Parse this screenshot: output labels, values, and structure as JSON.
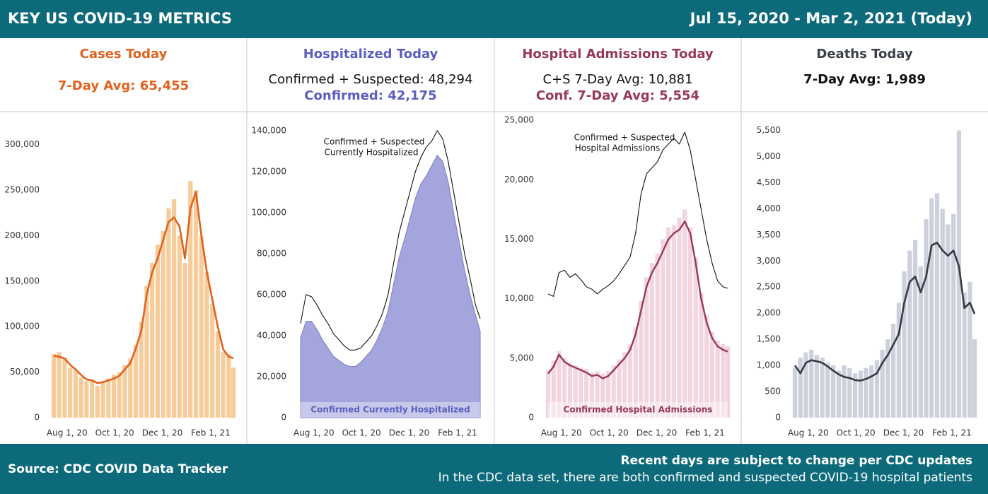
{
  "header": {
    "title": "KEY US COVID-19 METRICS",
    "date_range": "Jul 15, 2020 - Mar 2, 2021 (Today)"
  },
  "panels": [
    {
      "title": "Cases Today",
      "stats": [
        "7-Day Avg: 65,455"
      ]
    },
    {
      "title": "Hospitalized Today",
      "stats": [
        "Confirmed + Suspected: 48,294",
        "Confirmed: 42,175"
      ]
    },
    {
      "title": "Hospital Admissions Today",
      "stats": [
        "C+S 7-Day Avg: 10,881",
        "Conf. 7-Day Avg: 5,554"
      ]
    },
    {
      "title": "Deaths Today",
      "stats": [
        "7-Day Avg: 1,989"
      ]
    }
  ],
  "chart_data": [
    {
      "type": "bar",
      "x": [
        "2020-07-15",
        "2020-07-22",
        "2020-07-29",
        "2020-08-05",
        "2020-08-12",
        "2020-08-19",
        "2020-08-26",
        "2020-09-02",
        "2020-09-09",
        "2020-09-16",
        "2020-09-23",
        "2020-09-30",
        "2020-10-07",
        "2020-10-14",
        "2020-10-21",
        "2020-10-28",
        "2020-11-04",
        "2020-11-11",
        "2020-11-18",
        "2020-11-25",
        "2020-12-02",
        "2020-12-09",
        "2020-12-16",
        "2020-12-23",
        "2020-12-30",
        "2021-01-06",
        "2021-01-13",
        "2021-01-20",
        "2021-01-27",
        "2021-02-03",
        "2021-02-10",
        "2021-02-17",
        "2021-02-24",
        "2021-03-02"
      ],
      "xlim": [
        "2020-07-15",
        "2021-03-02"
      ],
      "xticks": [
        {
          "value": "2020-08-01",
          "label": "Aug 1, 20"
        },
        {
          "value": "2020-10-01",
          "label": "Oct 1, 20"
        },
        {
          "value": "2020-12-01",
          "label": "Dec 1, 20"
        },
        {
          "value": "2021-02-01",
          "label": "Feb 1, 21"
        }
      ],
      "ylim": [
        0,
        330000
      ],
      "yticks": [
        0,
        {
          "value": 50000,
          "label": "50,000"
        },
        {
          "value": 100000,
          "label": "100,000"
        },
        {
          "value": 150000,
          "label": "150,000"
        },
        {
          "value": 200000,
          "label": "200,000"
        },
        {
          "value": 250000,
          "label": "250,000"
        },
        {
          "value": 300000,
          "label": "300,000"
        }
      ],
      "series": [
        {
          "type": "bar",
          "color": "#f7cc9b",
          "values": [
            70000,
            72000,
            66000,
            55000,
            52000,
            44000,
            40000,
            42000,
            35000,
            40000,
            43000,
            47000,
            50000,
            58000,
            65000,
            80000,
            105000,
            145000,
            170000,
            190000,
            205000,
            230000,
            240000,
            200000,
            170000,
            260000,
            250000,
            200000,
            160000,
            125000,
            95000,
            72000,
            70000,
            55000
          ]
        },
        {
          "type": "line",
          "color": "#e0621f",
          "values": [
            68000,
            67000,
            65000,
            58000,
            53000,
            47000,
            42000,
            41000,
            38000,
            39000,
            41000,
            43000,
            46000,
            53000,
            60000,
            76000,
            95000,
            135000,
            160000,
            175000,
            195000,
            215000,
            220000,
            210000,
            175000,
            230000,
            248000,
            200000,
            160000,
            130000,
            100000,
            75000,
            67000,
            65455
          ]
        }
      ],
      "annotations": []
    },
    {
      "type": "line",
      "x": [
        "2020-07-15",
        "2020-07-22",
        "2020-07-29",
        "2020-08-05",
        "2020-08-12",
        "2020-08-19",
        "2020-08-26",
        "2020-09-02",
        "2020-09-09",
        "2020-09-16",
        "2020-09-23",
        "2020-09-30",
        "2020-10-07",
        "2020-10-14",
        "2020-10-21",
        "2020-10-28",
        "2020-11-04",
        "2020-11-11",
        "2020-11-18",
        "2020-11-25",
        "2020-12-02",
        "2020-12-09",
        "2020-12-16",
        "2020-12-23",
        "2020-12-30",
        "2021-01-06",
        "2021-01-13",
        "2021-01-20",
        "2021-01-27",
        "2021-02-03",
        "2021-02-10",
        "2021-02-17",
        "2021-02-24",
        "2021-03-02"
      ],
      "xlim": [
        "2020-07-15",
        "2021-03-02"
      ],
      "xticks": [
        {
          "value": "2020-08-01",
          "label": "Aug 1, 20"
        },
        {
          "value": "2020-10-01",
          "label": "Oct 1, 20"
        },
        {
          "value": "2020-12-01",
          "label": "Dec 1, 20"
        },
        {
          "value": "2021-02-01",
          "label": "Feb 1, 21"
        }
      ],
      "ylim": [
        0,
        146500
      ],
      "yticks": [
        0,
        {
          "value": 20000,
          "label": "20,000"
        },
        {
          "value": 40000,
          "label": "40,000"
        },
        {
          "value": 60000,
          "label": "60,000"
        },
        {
          "value": 80000,
          "label": "80,000"
        },
        {
          "value": 100000,
          "label": "100,000"
        },
        {
          "value": 120000,
          "label": "120,000"
        },
        {
          "value": 140000,
          "label": "140,000"
        }
      ],
      "series": [
        {
          "type": "area",
          "color": "#a3a5dc",
          "values": [
            39000,
            47000,
            47000,
            43000,
            38000,
            34000,
            30000,
            28000,
            26000,
            25000,
            25000,
            27000,
            30000,
            33000,
            38000,
            44000,
            52000,
            65000,
            78000,
            87000,
            97000,
            107000,
            114000,
            118000,
            123000,
            128000,
            125000,
            115000,
            100000,
            86000,
            72000,
            60000,
            50000,
            42175
          ]
        },
        {
          "type": "line",
          "color": "#111111",
          "values": [
            46000,
            60000,
            59000,
            55000,
            50000,
            46000,
            41000,
            38000,
            35000,
            33000,
            33000,
            34000,
            37000,
            40000,
            45000,
            51000,
            60000,
            75000,
            90000,
            100000,
            110000,
            120000,
            127000,
            132000,
            135000,
            140000,
            136000,
            125000,
            110000,
            95000,
            80000,
            68000,
            55000,
            48294
          ]
        }
      ],
      "annotations": [
        "Confirmed + Suspected",
        "Currently Hospitalized",
        "Confirmed Currently Hospitalized"
      ]
    },
    {
      "type": "line",
      "x": [
        "2020-07-15",
        "2020-07-22",
        "2020-07-29",
        "2020-08-05",
        "2020-08-12",
        "2020-08-19",
        "2020-08-26",
        "2020-09-02",
        "2020-09-09",
        "2020-09-16",
        "2020-09-23",
        "2020-09-30",
        "2020-10-07",
        "2020-10-14",
        "2020-10-21",
        "2020-10-28",
        "2020-11-04",
        "2020-11-11",
        "2020-11-18",
        "2020-11-25",
        "2020-12-02",
        "2020-12-09",
        "2020-12-16",
        "2020-12-23",
        "2020-12-30",
        "2021-01-06",
        "2021-01-13",
        "2021-01-20",
        "2021-01-27",
        "2021-02-03",
        "2021-02-10",
        "2021-02-17",
        "2021-02-24",
        "2021-03-02"
      ],
      "xlim": [
        "2020-07-15",
        "2021-03-02"
      ],
      "xticks": [
        {
          "value": "2020-08-01",
          "label": "Aug 1, 20"
        },
        {
          "value": "2020-10-01",
          "label": "Oct 1, 20"
        },
        {
          "value": "2020-12-01",
          "label": "Dec 1, 20"
        },
        {
          "value": "2021-02-01",
          "label": "Feb 1, 21"
        }
      ],
      "ylim": [
        0,
        25250
      ],
      "yticks": [
        0,
        {
          "value": 5000,
          "label": "5,000"
        },
        {
          "value": 10000,
          "label": "10,000"
        },
        {
          "value": 15000,
          "label": "15,000"
        },
        {
          "value": 20000,
          "label": "20,000"
        },
        {
          "value": 25000,
          "label": "25,000"
        }
      ],
      "series": [
        {
          "type": "bar",
          "color": "#f2d5de",
          "values": [
            4000,
            4800,
            5600,
            5000,
            4600,
            4400,
            4200,
            4100,
            3800,
            3900,
            3700,
            3900,
            4400,
            4900,
            5500,
            6200,
            7600,
            9800,
            11800,
            13000,
            13800,
            15000,
            16000,
            16200,
            16800,
            17500,
            16000,
            13500,
            10500,
            8600,
            7200,
            6500,
            6200,
            6000
          ]
        },
        {
          "type": "line",
          "color": "#111111",
          "values": [
            10400,
            10200,
            12200,
            12400,
            11800,
            12100,
            11600,
            11000,
            10800,
            10400,
            10800,
            11100,
            11500,
            12100,
            12800,
            13500,
            15500,
            18800,
            20500,
            21000,
            21500,
            22500,
            23000,
            23500,
            23000,
            24000,
            22500,
            20000,
            17500,
            15000,
            13000,
            11500,
            11000,
            10881
          ]
        },
        {
          "type": "line",
          "color": "#98385d",
          "values": [
            3700,
            4300,
            5300,
            4700,
            4400,
            4200,
            4000,
            3800,
            3500,
            3600,
            3300,
            3500,
            4000,
            4500,
            5000,
            5700,
            7000,
            9000,
            11000,
            12200,
            13000,
            14000,
            15000,
            15500,
            15800,
            16500,
            15500,
            13000,
            10000,
            8000,
            6700,
            6000,
            5700,
            5554
          ]
        }
      ],
      "annotations": [
        "Confirmed + Suspected",
        "Hospital Admissions",
        "Confirmed Hospital Admissions"
      ]
    },
    {
      "type": "bar",
      "x": [
        "2020-07-15",
        "2020-07-22",
        "2020-07-29",
        "2020-08-05",
        "2020-08-12",
        "2020-08-19",
        "2020-08-26",
        "2020-09-02",
        "2020-09-09",
        "2020-09-16",
        "2020-09-23",
        "2020-09-30",
        "2020-10-07",
        "2020-10-14",
        "2020-10-21",
        "2020-10-28",
        "2020-11-04",
        "2020-11-11",
        "2020-11-18",
        "2020-11-25",
        "2020-12-02",
        "2020-12-09",
        "2020-12-16",
        "2020-12-23",
        "2020-12-30",
        "2021-01-06",
        "2021-01-13",
        "2021-01-20",
        "2021-01-27",
        "2021-02-03",
        "2021-02-10",
        "2021-02-17",
        "2021-02-24",
        "2021-03-02"
      ],
      "xlim": [
        "2020-07-15",
        "2021-03-02"
      ],
      "xticks": [
        {
          "value": "2020-08-01",
          "label": "Aug 1, 20"
        },
        {
          "value": "2020-10-01",
          "label": "Oct 1, 20"
        },
        {
          "value": "2020-12-01",
          "label": "Dec 1, 20"
        },
        {
          "value": "2021-02-01",
          "label": "Feb 1, 21"
        }
      ],
      "ylim": [
        0,
        5750
      ],
      "yticks": [
        0,
        500,
        {
          "value": 1000,
          "label": "1,000"
        },
        {
          "value": 1500,
          "label": "1,500"
        },
        {
          "value": 2000,
          "label": "2,000"
        },
        {
          "value": 2500,
          "label": "2,500"
        },
        {
          "value": 3000,
          "label": "3,000"
        },
        {
          "value": 3500,
          "label": "3,500"
        },
        {
          "value": 4000,
          "label": "4,000"
        },
        {
          "value": 4500,
          "label": "4,500"
        },
        {
          "value": 5000,
          "label": "5,000"
        },
        {
          "value": 5500,
          "label": "5,500"
        }
      ],
      "series": [
        {
          "type": "bar",
          "color": "#cdd1dc",
          "values": [
            950,
            1150,
            1250,
            1300,
            1200,
            1150,
            1050,
            1000,
            900,
            1000,
            950,
            850,
            900,
            950,
            1000,
            1100,
            1300,
            1500,
            1800,
            2200,
            2800,
            3200,
            3400,
            2900,
            3800,
            4200,
            4300,
            4000,
            3700,
            3900,
            5500,
            2400,
            2600,
            1500
          ]
        },
        {
          "type": "line",
          "color": "#353b46",
          "values": [
            1000,
            850,
            1050,
            1100,
            1080,
            1050,
            980,
            900,
            830,
            780,
            760,
            720,
            710,
            740,
            790,
            850,
            1050,
            1200,
            1400,
            1600,
            2200,
            2600,
            2700,
            2400,
            2700,
            3300,
            3350,
            3200,
            3100,
            3200,
            2900,
            2100,
            2200,
            1989
          ]
        }
      ],
      "annotations": []
    }
  ],
  "footer": {
    "source": "Source: CDC COVID Data Tracker",
    "notes": [
      "Recent days are subject to change per CDC updates",
      "In the CDC data set, there are both confirmed and suspected COVID-19 hospital patients"
    ]
  }
}
